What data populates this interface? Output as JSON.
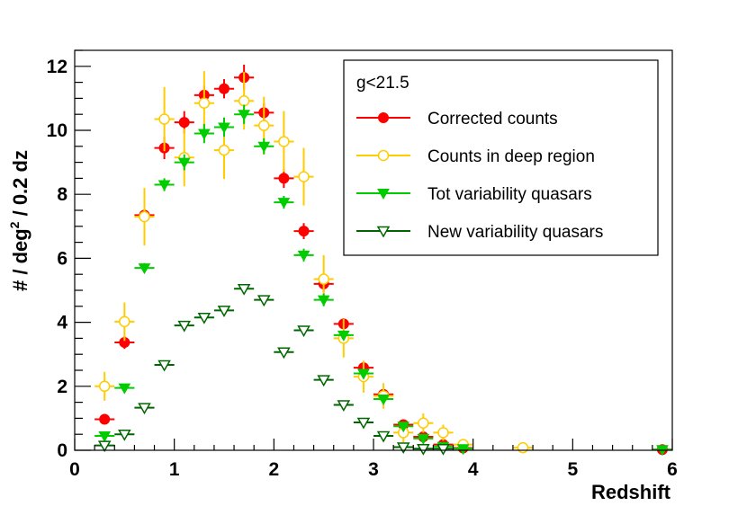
{
  "chart_data": {
    "type": "scatter",
    "title": "",
    "xlabel": "Redshift",
    "ylabel": "# / deg",
    "ylabel_sup": "2",
    "ylabel_suffix": " / 0.2 dz",
    "xlim": [
      0,
      6
    ],
    "ylim": [
      0,
      12.5
    ],
    "x_ticks": [
      "0",
      "1",
      "2",
      "3",
      "4",
      "5",
      "6"
    ],
    "y_ticks": [
      "0",
      "2",
      "4",
      "6",
      "8",
      "10",
      "12"
    ],
    "legend_header": "g<21.5",
    "legend_position": "top-right",
    "bin_half_width": 0.1,
    "series": [
      {
        "name": "Corrected counts",
        "color": "#ff0000",
        "marker": "filled-circle",
        "points": [
          {
            "x": 0.3,
            "y": 0.97,
            "err": 0
          },
          {
            "x": 0.5,
            "y": 3.37,
            "err": 0.2
          },
          {
            "x": 0.7,
            "y": 7.35,
            "err": 0
          },
          {
            "x": 0.9,
            "y": 9.45,
            "err": 0.35
          },
          {
            "x": 1.1,
            "y": 10.25,
            "err": 0.35
          },
          {
            "x": 1.3,
            "y": 11.1,
            "err": 0.3
          },
          {
            "x": 1.5,
            "y": 11.3,
            "err": 0.3
          },
          {
            "x": 1.7,
            "y": 11.65,
            "err": 0.4
          },
          {
            "x": 1.9,
            "y": 10.55,
            "err": 0.3
          },
          {
            "x": 2.1,
            "y": 8.5,
            "err": 0.3
          },
          {
            "x": 2.3,
            "y": 6.85,
            "err": 0.25
          },
          {
            "x": 2.5,
            "y": 5.2,
            "err": 0.25
          },
          {
            "x": 2.7,
            "y": 3.95,
            "err": 0.15
          },
          {
            "x": 2.9,
            "y": 2.58,
            "err": 0.1
          },
          {
            "x": 3.1,
            "y": 1.75,
            "err": 0.1
          },
          {
            "x": 3.3,
            "y": 0.8,
            "err": 0
          },
          {
            "x": 3.5,
            "y": 0.42,
            "err": 0
          },
          {
            "x": 3.7,
            "y": 0.18,
            "err": 0
          },
          {
            "x": 3.9,
            "y": 0.07,
            "err": 0
          },
          {
            "x": 5.9,
            "y": 0.02,
            "err": 0
          }
        ]
      },
      {
        "name": "Counts in deep region",
        "color": "#ffcc00",
        "marker": "open-circle",
        "points": [
          {
            "x": 0.3,
            "y": 2.0,
            "err": 0.45
          },
          {
            "x": 0.5,
            "y": 4.02,
            "err": 0.6
          },
          {
            "x": 0.7,
            "y": 7.3,
            "err": 0.9
          },
          {
            "x": 0.9,
            "y": 10.35,
            "err": 1.0
          },
          {
            "x": 1.1,
            "y": 9.15,
            "err": 0.9
          },
          {
            "x": 1.3,
            "y": 10.85,
            "err": 1.0
          },
          {
            "x": 1.5,
            "y": 9.38,
            "err": 0.9
          },
          {
            "x": 1.7,
            "y": 10.92,
            "err": 0.9
          },
          {
            "x": 1.9,
            "y": 10.15,
            "err": 0.9
          },
          {
            "x": 2.1,
            "y": 9.65,
            "err": 0.95
          },
          {
            "x": 2.3,
            "y": 8.55,
            "err": 0.9
          },
          {
            "x": 2.5,
            "y": 5.35,
            "err": 0.75
          },
          {
            "x": 2.7,
            "y": 3.5,
            "err": 0.6
          },
          {
            "x": 2.9,
            "y": 2.3,
            "err": 0.5
          },
          {
            "x": 3.1,
            "y": 1.7,
            "err": 0.4
          },
          {
            "x": 3.3,
            "y": 0.55,
            "err": 0.3
          },
          {
            "x": 3.5,
            "y": 0.85,
            "err": 0.3
          },
          {
            "x": 3.7,
            "y": 0.55,
            "err": 0.25
          },
          {
            "x": 3.9,
            "y": 0.18,
            "err": 0.15
          },
          {
            "x": 4.5,
            "y": 0.08,
            "err": 0.05
          }
        ]
      },
      {
        "name": "Tot variability quasars",
        "color": "#00cc00",
        "marker": "filled-triangle-down",
        "points": [
          {
            "x": 0.3,
            "y": 0.45,
            "err": 0
          },
          {
            "x": 0.5,
            "y": 1.95,
            "err": 0
          },
          {
            "x": 0.7,
            "y": 5.7,
            "err": 0.15
          },
          {
            "x": 0.9,
            "y": 8.3,
            "err": 0.2
          },
          {
            "x": 1.1,
            "y": 9.0,
            "err": 0.25
          },
          {
            "x": 1.3,
            "y": 9.9,
            "err": 0.3
          },
          {
            "x": 1.5,
            "y": 10.1,
            "err": 0.3
          },
          {
            "x": 1.7,
            "y": 10.5,
            "err": 0.3
          },
          {
            "x": 1.9,
            "y": 9.5,
            "err": 0.25
          },
          {
            "x": 2.1,
            "y": 7.75,
            "err": 0.2
          },
          {
            "x": 2.3,
            "y": 6.1,
            "err": 0.2
          },
          {
            "x": 2.5,
            "y": 4.7,
            "err": 0.2
          },
          {
            "x": 2.7,
            "y": 3.6,
            "err": 0.15
          },
          {
            "x": 2.9,
            "y": 2.4,
            "err": 0.1
          },
          {
            "x": 3.1,
            "y": 1.6,
            "err": 0.1
          },
          {
            "x": 3.3,
            "y": 0.75,
            "err": 0
          },
          {
            "x": 3.5,
            "y": 0.37,
            "err": 0
          },
          {
            "x": 3.7,
            "y": 0.12,
            "err": 0
          },
          {
            "x": 3.9,
            "y": 0.05,
            "err": 0
          },
          {
            "x": 5.9,
            "y": 0.02,
            "err": 0
          }
        ]
      },
      {
        "name": "New variability quasars",
        "color": "#006600",
        "marker": "open-triangle-down",
        "points": [
          {
            "x": 0.3,
            "y": 0.15,
            "err": 0
          },
          {
            "x": 0.5,
            "y": 0.5,
            "err": 0
          },
          {
            "x": 0.7,
            "y": 1.33,
            "err": 0
          },
          {
            "x": 0.9,
            "y": 2.67,
            "err": 0
          },
          {
            "x": 1.1,
            "y": 3.9,
            "err": 0
          },
          {
            "x": 1.3,
            "y": 4.15,
            "err": 0
          },
          {
            "x": 1.5,
            "y": 4.37,
            "err": 0
          },
          {
            "x": 1.7,
            "y": 5.05,
            "err": 0
          },
          {
            "x": 1.9,
            "y": 4.7,
            "err": 0
          },
          {
            "x": 2.1,
            "y": 3.07,
            "err": 0
          },
          {
            "x": 2.3,
            "y": 3.75,
            "err": 0
          },
          {
            "x": 2.5,
            "y": 2.2,
            "err": 0
          },
          {
            "x": 2.7,
            "y": 1.42,
            "err": 0
          },
          {
            "x": 2.9,
            "y": 0.87,
            "err": 0
          },
          {
            "x": 3.1,
            "y": 0.45,
            "err": 0
          },
          {
            "x": 3.3,
            "y": 0.1,
            "err": 0
          },
          {
            "x": 3.5,
            "y": 0.05,
            "err": 0
          },
          {
            "x": 3.7,
            "y": 0.05,
            "err": 0
          }
        ]
      }
    ]
  }
}
